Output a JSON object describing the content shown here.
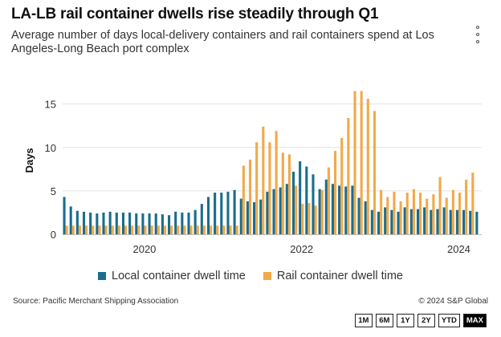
{
  "header": {
    "title": "LA-LB rail container dwells rise steadily through Q1",
    "subtitle": "Average number of days local-delivery containers and rail containers spend at Los Angeles-Long Beach port complex"
  },
  "footer": {
    "source": "Source: Pacific Merchant Shipping Association",
    "copyright": "© 2024 S&P Global"
  },
  "range_buttons": [
    {
      "label": "1M",
      "active": false
    },
    {
      "label": "6M",
      "active": false
    },
    {
      "label": "1Y",
      "active": false
    },
    {
      "label": "2Y",
      "active": false
    },
    {
      "label": "YTD",
      "active": false
    },
    {
      "label": "MAX",
      "active": true
    }
  ],
  "icons": {
    "menu": "vertical-ellipsis-icon"
  },
  "colors": {
    "local": "#1a6d8e",
    "rail": "#f2a94a",
    "gridline": "#e2e2e2"
  },
  "chart_data": {
    "type": "bar",
    "ylabel": "Days",
    "ylim": [
      0,
      17
    ],
    "yticks": [
      0,
      5,
      10,
      15
    ],
    "xticks": [
      {
        "label": "2020",
        "index": 12
      },
      {
        "label": "2022",
        "index": 36
      },
      {
        "label": "2024",
        "index": 60
      }
    ],
    "grid": true,
    "legend": "bottom",
    "start": "2019-01",
    "series": [
      {
        "name": "Local container dwell time",
        "color": "#1a6d8e",
        "values": [
          4.3,
          3.2,
          2.7,
          2.6,
          2.5,
          2.4,
          2.5,
          2.6,
          2.5,
          2.5,
          2.5,
          2.4,
          2.4,
          2.4,
          2.4,
          2.3,
          2.2,
          2.6,
          2.5,
          2.5,
          2.8,
          3.5,
          4.3,
          4.8,
          4.8,
          4.9,
          5.1,
          4.1,
          3.8,
          3.7,
          4.0,
          4.9,
          5.2,
          5.4,
          5.8,
          7.2,
          8.4,
          7.8,
          6.9,
          5.2,
          6.3,
          5.8,
          5.6,
          5.5,
          5.6,
          4.2,
          3.8,
          2.8,
          2.6,
          3.1,
          2.8,
          2.6,
          3.1,
          2.9,
          2.9,
          3.1,
          2.8,
          2.9,
          3.1,
          2.8,
          2.8,
          2.8,
          2.7,
          2.6
        ]
      },
      {
        "name": "Rail container dwell time",
        "color": "#f2a94a",
        "values": [
          1.0,
          1.0,
          1.0,
          1.0,
          1.0,
          1.0,
          1.0,
          1.0,
          1.0,
          1.0,
          1.0,
          1.0,
          1.0,
          1.0,
          1.0,
          1.0,
          1.0,
          1.0,
          1.0,
          1.0,
          1.0,
          1.0,
          1.0,
          1.0,
          1.0,
          1.0,
          1.0,
          7.9,
          8.6,
          10.6,
          12.4,
          10.6,
          11.9,
          9.4,
          9.2,
          5.6,
          3.5,
          3.6,
          3.3,
          5.1,
          7.7,
          9.6,
          11.1,
          13.4,
          16.5,
          16.5,
          15.6,
          14.2,
          5.1,
          4.3,
          4.9,
          3.8,
          4.8,
          5.2,
          4.8,
          4.1,
          4.6,
          6.6,
          4.2,
          5.1,
          4.8,
          6.3,
          7.1
        ]
      }
    ]
  }
}
